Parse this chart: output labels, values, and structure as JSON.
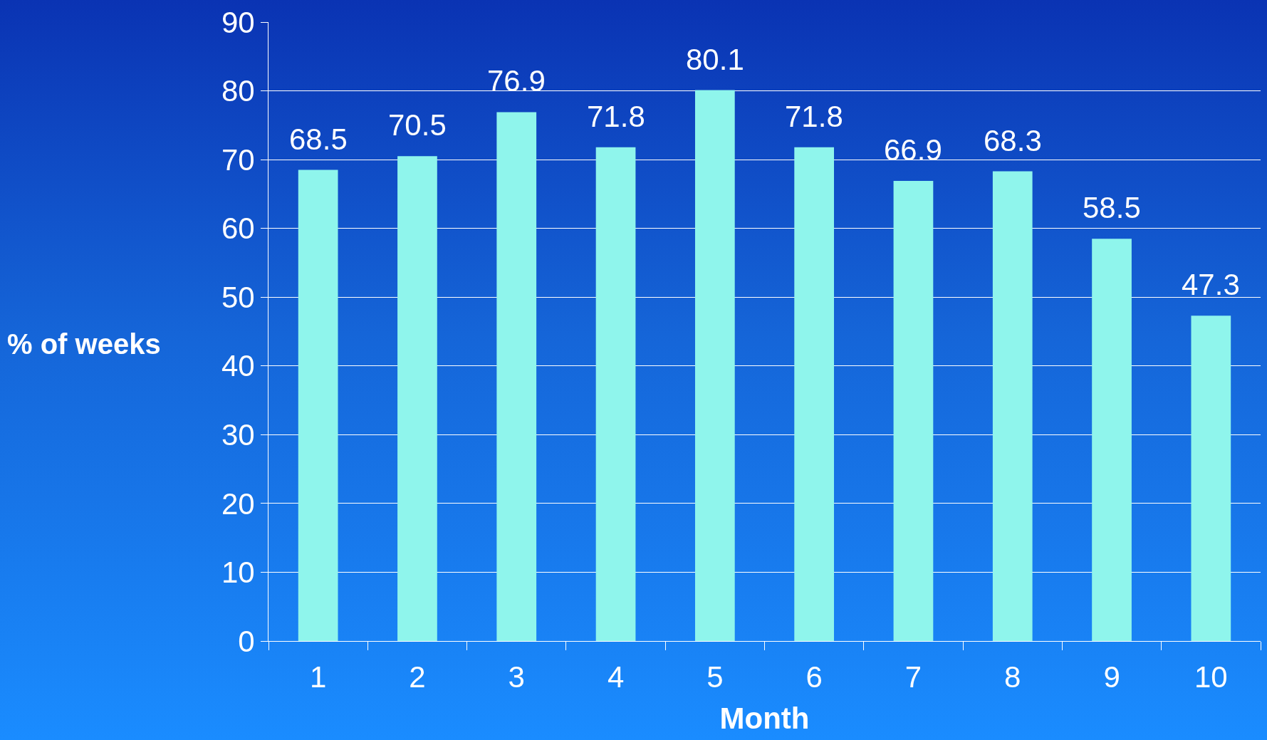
{
  "chart_data": {
    "type": "bar",
    "xlabel": "Month",
    "ylabel": "% of weeks",
    "categories": [
      "1",
      "2",
      "3",
      "4",
      "5",
      "6",
      "7",
      "8",
      "9",
      "10"
    ],
    "values": [
      68.5,
      70.5,
      76.9,
      71.8,
      80.1,
      71.8,
      66.9,
      68.3,
      58.5,
      47.3
    ],
    "color": "#8ff5ec",
    "ylim": [
      0,
      90
    ],
    "yticks": [
      0,
      10,
      20,
      30,
      40,
      50,
      60,
      70,
      80,
      90
    ],
    "grid": "y",
    "data_labels": true
  }
}
